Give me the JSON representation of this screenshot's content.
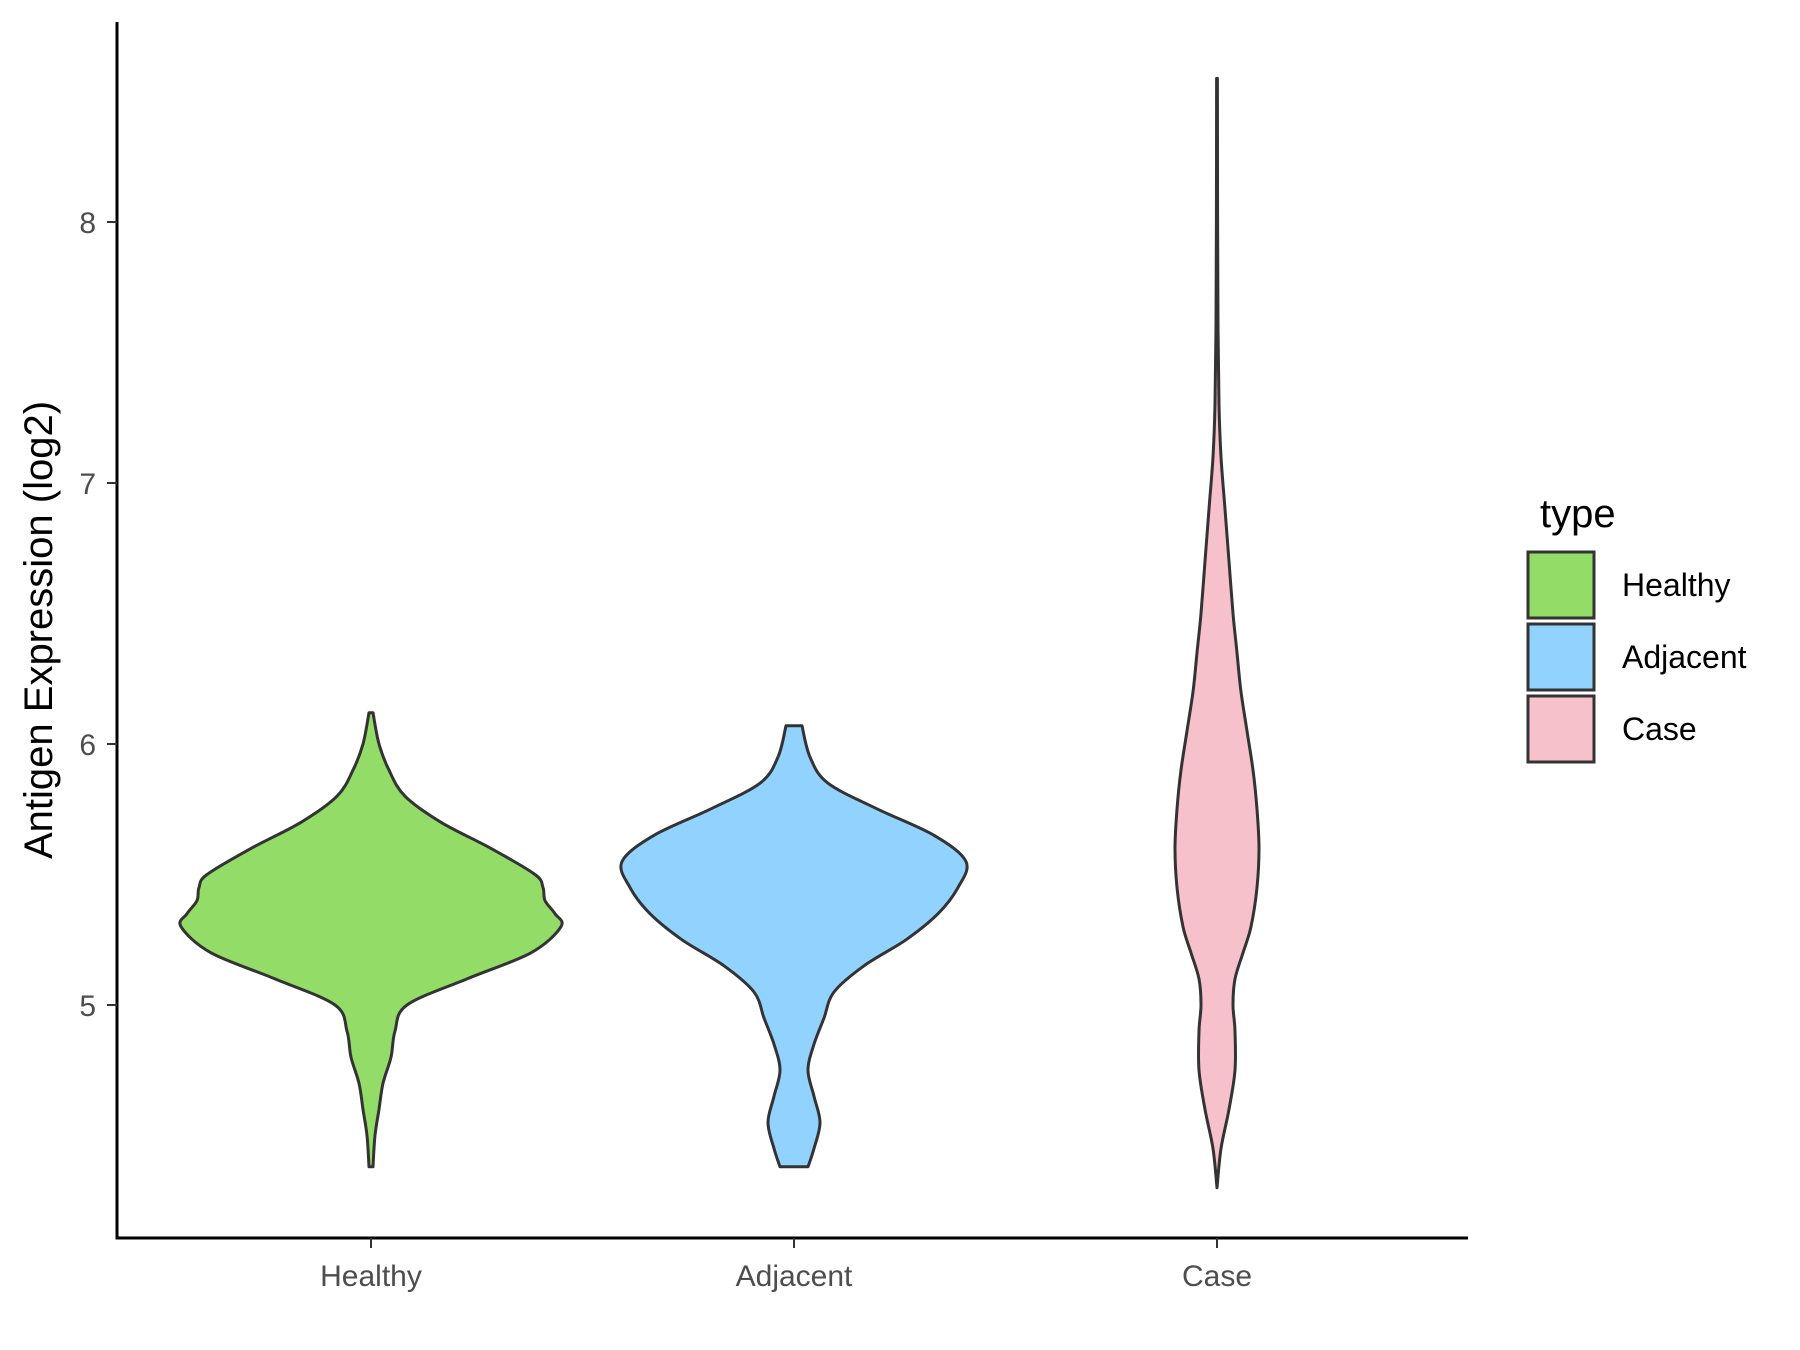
{
  "chart_data": {
    "type": "violin",
    "title": "",
    "xlabel": "",
    "ylabel": "Antigen Expression (log2)",
    "ylim": [
      4.2,
      8.8
    ],
    "y_ticks": [
      5,
      6,
      7,
      8
    ],
    "grid": false,
    "categories": [
      "Healthy",
      "Adjacent",
      "Case"
    ],
    "series": [
      {
        "name": "Healthy",
        "color": "#93DC68",
        "y_min": 4.38,
        "y_max": 6.12,
        "profile": [
          [
            4.38,
            0.01
          ],
          [
            4.5,
            0.02
          ],
          [
            4.6,
            0.04
          ],
          [
            4.7,
            0.06
          ],
          [
            4.8,
            0.1
          ],
          [
            4.9,
            0.12
          ],
          [
            5.0,
            0.18
          ],
          [
            5.1,
            0.48
          ],
          [
            5.2,
            0.8
          ],
          [
            5.3,
            0.95
          ],
          [
            5.35,
            0.92
          ],
          [
            5.4,
            0.87
          ],
          [
            5.45,
            0.86
          ],
          [
            5.5,
            0.82
          ],
          [
            5.6,
            0.6
          ],
          [
            5.7,
            0.35
          ],
          [
            5.8,
            0.17
          ],
          [
            5.9,
            0.09
          ],
          [
            6.0,
            0.04
          ],
          [
            6.12,
            0.01
          ]
        ]
      },
      {
        "name": "Adjacent",
        "color": "#92D2FF",
        "y_min": 4.38,
        "y_max": 6.07,
        "profile": [
          [
            4.38,
            0.07
          ],
          [
            4.45,
            0.1
          ],
          [
            4.55,
            0.13
          ],
          [
            4.65,
            0.1
          ],
          [
            4.75,
            0.07
          ],
          [
            4.85,
            0.1
          ],
          [
            4.95,
            0.15
          ],
          [
            5.05,
            0.2
          ],
          [
            5.15,
            0.35
          ],
          [
            5.25,
            0.56
          ],
          [
            5.35,
            0.72
          ],
          [
            5.45,
            0.82
          ],
          [
            5.55,
            0.86
          ],
          [
            5.65,
            0.7
          ],
          [
            5.75,
            0.42
          ],
          [
            5.85,
            0.17
          ],
          [
            5.95,
            0.08
          ],
          [
            6.07,
            0.04
          ]
        ]
      },
      {
        "name": "Case",
        "color": "#F7C1CC",
        "y_min": 4.3,
        "y_max": 8.55,
        "profile": [
          [
            4.3,
            0.0
          ],
          [
            4.45,
            0.02
          ],
          [
            4.6,
            0.06
          ],
          [
            4.75,
            0.09
          ],
          [
            4.9,
            0.09
          ],
          [
            5.0,
            0.08
          ],
          [
            5.1,
            0.09
          ],
          [
            5.2,
            0.13
          ],
          [
            5.3,
            0.17
          ],
          [
            5.45,
            0.2
          ],
          [
            5.6,
            0.21
          ],
          [
            5.75,
            0.2
          ],
          [
            5.9,
            0.18
          ],
          [
            6.05,
            0.15
          ],
          [
            6.2,
            0.12
          ],
          [
            6.35,
            0.1
          ],
          [
            6.5,
            0.08
          ],
          [
            6.7,
            0.06
          ],
          [
            6.9,
            0.04
          ],
          [
            7.1,
            0.02
          ],
          [
            7.3,
            0.01
          ],
          [
            7.6,
            0.005
          ],
          [
            8.0,
            0.003
          ],
          [
            8.55,
            0.002
          ]
        ]
      }
    ],
    "legend": {
      "title": "type",
      "position": "right",
      "entries": [
        {
          "label": "Healthy",
          "color": "#93DC68"
        },
        {
          "label": "Adjacent",
          "color": "#92D2FF"
        },
        {
          "label": "Case",
          "color": "#F7C1CC"
        }
      ]
    }
  }
}
